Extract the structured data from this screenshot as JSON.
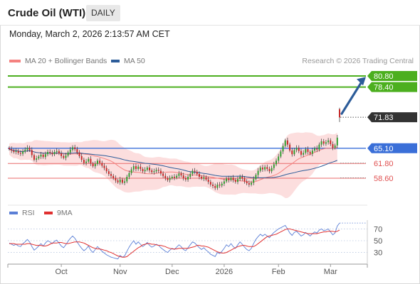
{
  "header": {
    "title": "Crude Oil (WTI)",
    "timeframe": "DAILY",
    "datetime": "Monday, March 2, 2026 2:13:57 AM CET"
  },
  "legend": {
    "ma20": {
      "label": "MA 20 + Bollinger Bands",
      "color": "#f4817f"
    },
    "ma50": {
      "label": "MA 50",
      "color": "#2c5c99"
    },
    "rsi": {
      "label": "RSI",
      "color": "#5b7fd6"
    },
    "rsi_ma": {
      "label": "9MA",
      "color": "#e03030"
    },
    "credit": "Research © 2026 Trading Central"
  },
  "colors": {
    "up": "#2f9e2f",
    "down": "#c62828",
    "resistance": "#4caf1f",
    "pivot": "#3a6fd8",
    "support": "#e86a6a",
    "current": "#333333",
    "arrow": "#2c5c99",
    "band": "#fbd3d3"
  },
  "chart_data": {
    "type": "candlestick",
    "x_axis_labels": [
      "Oct",
      "Nov",
      "Dec",
      "2026",
      "Feb",
      "Mar"
    ],
    "ylim": [
      53.5,
      82.5
    ],
    "levels": [
      {
        "value": 80.8,
        "label": "80.80",
        "kind": "resistance"
      },
      {
        "value": 78.4,
        "label": "78.40",
        "kind": "resistance"
      },
      {
        "value": 71.83,
        "label": "71.83",
        "kind": "current"
      },
      {
        "value": 65.1,
        "label": "65.10",
        "kind": "pivot"
      },
      {
        "value": 61.8,
        "label": "61.80",
        "kind": "support"
      },
      {
        "value": 58.6,
        "label": "58.60",
        "kind": "support"
      }
    ],
    "closes": [
      64.9,
      64.6,
      64.3,
      64.5,
      64.1,
      63.9,
      64.4,
      64.8,
      65.2,
      64.7,
      63.6,
      62.6,
      62.9,
      63.3,
      63.7,
      63.2,
      63.8,
      64.3,
      64.1,
      63.8,
      64.3,
      64.5,
      64.0,
      63.4,
      63.0,
      63.5,
      64.2,
      64.8,
      65.3,
      64.9,
      64.2,
      63.4,
      62.6,
      61.9,
      62.2,
      62.8,
      61.8,
      61.2,
      61.7,
      62.4,
      61.9,
      61.3,
      60.8,
      60.1,
      59.5,
      59.1,
      58.6,
      58.1,
      57.7,
      58.3,
      57.6,
      57.9,
      58.9,
      59.7,
      60.5,
      61.2,
      60.6,
      61.1,
      60.6,
      60.1,
      60.4,
      60.9,
      60.3,
      59.9,
      60.1,
      60.4,
      60.2,
      59.6,
      59.1,
      58.6,
      58.2,
      58.6,
      58.9,
      58.7,
      59.1,
      59.6,
      59.2,
      58.6,
      58.3,
      58.9,
      59.5,
      60.2,
      60.0,
      59.5,
      58.9,
      58.5,
      58.8,
      58.3,
      57.8,
      57.2,
      56.9,
      56.5,
      57.2,
      57.0,
      57.4,
      57.9,
      58.5,
      58.2,
      58.7,
      58.2,
      57.8,
      58.4,
      58.9,
      58.5,
      57.9,
      57.5,
      57.2,
      57.6,
      58.4,
      59.3,
      60.2,
      60.9,
      60.5,
      61.0,
      60.6,
      60.1,
      60.8,
      61.6,
      62.4,
      63.3,
      64.4,
      65.6,
      66.8,
      65.9,
      64.6,
      63.8,
      64.7,
      65.2,
      64.5,
      63.7,
      64.1,
      64.9,
      64.3,
      63.9,
      64.6,
      65.1,
      64.8,
      65.9,
      66.6,
      66.1,
      66.4,
      66.8,
      66.0,
      65.2,
      65.7,
      67.4
    ],
    "last_candle": {
      "open": 73.6,
      "high": 73.9,
      "low": 70.8,
      "close": 71.8
    },
    "rsi": {
      "ylim": [
        15,
        85
      ],
      "ticks": [
        70,
        50,
        30
      ],
      "values": [
        46,
        44,
        42,
        44,
        41,
        40,
        45,
        48,
        52,
        48,
        40,
        34,
        37,
        41,
        45,
        41,
        46,
        50,
        48,
        45,
        49,
        51,
        46,
        41,
        38,
        43,
        49,
        54,
        58,
        54,
        48,
        42,
        37,
        33,
        36,
        41,
        34,
        30,
        35,
        40,
        36,
        32,
        29,
        26,
        24,
        22,
        21,
        20,
        19,
        25,
        22,
        24,
        32,
        39,
        45,
        50,
        44,
        48,
        44,
        40,
        43,
        47,
        42,
        39,
        41,
        44,
        42,
        38,
        35,
        32,
        30,
        34,
        37,
        35,
        39,
        43,
        40,
        35,
        33,
        38,
        43,
        48,
        46,
        42,
        38,
        35,
        38,
        34,
        31,
        27,
        25,
        23,
        30,
        28,
        32,
        37,
        43,
        40,
        45,
        40,
        37,
        43,
        48,
        44,
        39,
        35,
        33,
        37,
        45,
        52,
        57,
        61,
        58,
        61,
        58,
        55,
        60,
        64,
        67,
        70,
        72,
        74,
        76,
        70,
        63,
        59,
        64,
        66,
        62,
        58,
        60,
        64,
        61,
        58,
        62,
        65,
        63,
        68,
        70,
        67,
        68,
        70,
        65,
        60,
        63,
        75,
        80
      ],
      "ma9": [
        45,
        45,
        45,
        44,
        44,
        44,
        44,
        44,
        45,
        45,
        44,
        43,
        42,
        42,
        42,
        41,
        41,
        42,
        44,
        46,
        46,
        46,
        47,
        47,
        46,
        45,
        45,
        46,
        47,
        48,
        48,
        48,
        47,
        46,
        44,
        42,
        40,
        38,
        37,
        36,
        36,
        35,
        34,
        33,
        31,
        30,
        28,
        26,
        24,
        23,
        22,
        22,
        23,
        26,
        29,
        32,
        35,
        38,
        40,
        43,
        44,
        45,
        45,
        44,
        44,
        43,
        42,
        42,
        41,
        40,
        38,
        37,
        36,
        36,
        36,
        37,
        37,
        37,
        37,
        37,
        38,
        39,
        40,
        42,
        42,
        41,
        41,
        40,
        39,
        37,
        35,
        33,
        31,
        30,
        29,
        29,
        30,
        32,
        34,
        36,
        38,
        40,
        41,
        42,
        42,
        41,
        40,
        40,
        40,
        42,
        45,
        48,
        51,
        54,
        57,
        58,
        59,
        60,
        61,
        63,
        65,
        67,
        69,
        70,
        70,
        69,
        68,
        67,
        66,
        65,
        64,
        63,
        62,
        62,
        62,
        62,
        62,
        63,
        64,
        65,
        65,
        66,
        66,
        66,
        65,
        66,
        68
      ]
    }
  }
}
